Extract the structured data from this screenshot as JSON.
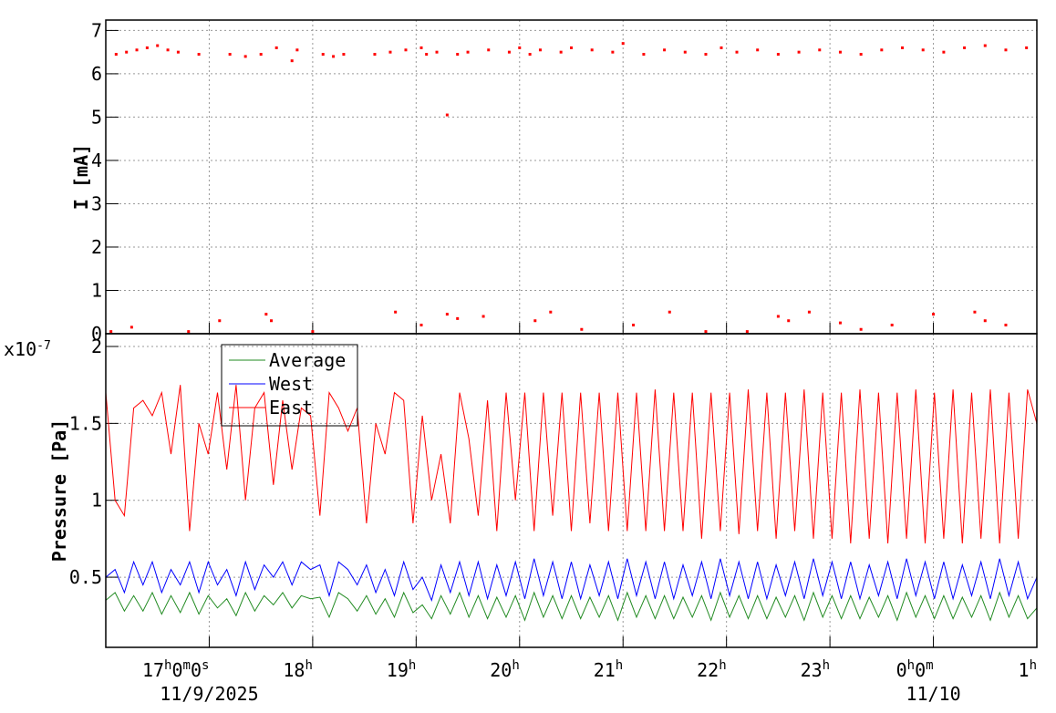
{
  "chart_data": [
    {
      "type": "scatter",
      "y_label": "I [mA]",
      "xlim": [
        16,
        25
      ],
      "xticks": [
        17,
        18,
        19,
        20,
        21,
        22,
        23,
        24,
        25
      ],
      "ylim": [
        0,
        7.24
      ],
      "yticks": [
        0,
        1,
        2,
        3,
        4,
        5,
        6,
        7
      ],
      "grid": true,
      "color": "#ff0000",
      "x": [
        16.1,
        16.2,
        16.3,
        16.4,
        16.5,
        16.6,
        16.7,
        16.9,
        17.2,
        17.35,
        17.5,
        17.65,
        17.8,
        17.85,
        18.1,
        18.2,
        18.3,
        18.6,
        18.75,
        18.9,
        19.05,
        19.1,
        19.2,
        19.4,
        19.5,
        19.7,
        19.9,
        20.0,
        20.1,
        20.2,
        20.4,
        20.5,
        20.7,
        20.9,
        21.0,
        21.2,
        21.4,
        21.6,
        21.8,
        21.95,
        22.1,
        22.3,
        22.5,
        22.7,
        22.9,
        23.1,
        23.3,
        23.5,
        23.7,
        23.9,
        24.1,
        24.3,
        24.5,
        24.7,
        24.9,
        19.3,
        16.05,
        16.25,
        16.8,
        17.1,
        17.55,
        17.6,
        18.0,
        18.8,
        19.05,
        19.3,
        19.4,
        19.65,
        20.15,
        20.3,
        20.6,
        21.1,
        21.45,
        21.8,
        22.2,
        22.5,
        22.6,
        22.8,
        23.1,
        23.3,
        23.6,
        24.0,
        24.4,
        24.5,
        24.7
      ],
      "values": [
        6.45,
        6.5,
        6.55,
        6.6,
        6.65,
        6.55,
        6.5,
        6.45,
        6.45,
        6.4,
        6.45,
        6.6,
        6.3,
        6.55,
        6.45,
        6.4,
        6.45,
        6.45,
        6.5,
        6.55,
        6.6,
        6.45,
        6.5,
        6.45,
        6.5,
        6.55,
        6.5,
        6.6,
        6.45,
        6.55,
        6.5,
        6.6,
        6.55,
        6.5,
        6.7,
        6.45,
        6.55,
        6.5,
        6.45,
        6.6,
        6.5,
        6.55,
        6.45,
        6.5,
        6.55,
        6.5,
        6.45,
        6.55,
        6.6,
        6.55,
        6.5,
        6.6,
        6.65,
        6.55,
        6.6,
        5.05,
        0.05,
        0.15,
        0.05,
        0.3,
        0.45,
        0.3,
        0.05,
        0.5,
        0.2,
        0.45,
        0.35,
        0.4,
        0.3,
        0.5,
        0.1,
        0.2,
        0.5,
        0.05,
        0.05,
        0.4,
        0.3,
        0.5,
        0.25,
        0.1,
        0.2,
        0.45,
        0.5,
        0.3,
        0.2
      ]
    },
    {
      "type": "line",
      "y_label": "Pressure [Pa]",
      "y_scale": {
        "base": "x10",
        "exponent": "-7"
      },
      "xlim": [
        16,
        25
      ],
      "xticks": [
        {
          "value": 17,
          "label": "17h0m0s"
        },
        {
          "value": 18,
          "label": "18h"
        },
        {
          "value": 19,
          "label": "19h"
        },
        {
          "value": 20,
          "label": "20h"
        },
        {
          "value": 21,
          "label": "21h"
        },
        {
          "value": 22,
          "label": "22h"
        },
        {
          "value": 23,
          "label": "23h"
        },
        {
          "value": 24,
          "label": "0h0m"
        },
        {
          "value": 25,
          "label": "1h"
        }
      ],
      "date_labels": [
        {
          "value": 17,
          "label": "11/9/2025"
        },
        {
          "value": 24,
          "label": "11/10"
        }
      ],
      "ylim": [
        0.044,
        2.083
      ],
      "yticks": [
        0.5,
        1,
        1.5,
        2
      ],
      "grid": true,
      "legend": "upper left",
      "x": [
        16,
        16.09,
        16.18,
        16.27,
        16.36,
        16.45,
        16.54,
        16.63,
        16.72,
        16.81,
        16.9,
        16.99,
        17.08,
        17.17,
        17.26,
        17.35,
        17.44,
        17.53,
        17.62,
        17.71,
        17.8,
        17.89,
        17.98,
        18.07,
        18.16,
        18.25,
        18.34,
        18.43,
        18.52,
        18.61,
        18.7,
        18.79,
        18.88,
        18.97,
        19.06,
        19.15,
        19.24,
        19.33,
        19.42,
        19.51,
        19.6,
        19.69,
        19.78,
        19.87,
        19.96,
        20.05,
        20.14,
        20.23,
        20.32,
        20.41,
        20.5,
        20.59,
        20.68,
        20.77,
        20.86,
        20.95,
        21.04,
        21.13,
        21.22,
        21.31,
        21.4,
        21.49,
        21.58,
        21.67,
        21.76,
        21.85,
        21.94,
        22.03,
        22.12,
        22.21,
        22.3,
        22.39,
        22.48,
        22.57,
        22.66,
        22.75,
        22.84,
        22.93,
        23.02,
        23.11,
        23.2,
        23.29,
        23.38,
        23.47,
        23.56,
        23.65,
        23.74,
        23.83,
        23.92,
        24.01,
        24.1,
        24.19,
        24.28,
        24.37,
        24.46,
        24.55,
        24.64,
        24.73,
        24.82,
        24.91,
        25
      ],
      "series": [
        {
          "name": "Average",
          "color": "#228b22",
          "values": [
            0.35,
            0.4,
            0.28,
            0.38,
            0.28,
            0.4,
            0.26,
            0.38,
            0.27,
            0.4,
            0.26,
            0.38,
            0.3,
            0.36,
            0.25,
            0.4,
            0.28,
            0.38,
            0.32,
            0.4,
            0.3,
            0.38,
            0.36,
            0.37,
            0.24,
            0.4,
            0.36,
            0.28,
            0.38,
            0.26,
            0.36,
            0.24,
            0.4,
            0.27,
            0.32,
            0.23,
            0.38,
            0.26,
            0.4,
            0.24,
            0.38,
            0.23,
            0.37,
            0.24,
            0.38,
            0.22,
            0.4,
            0.24,
            0.38,
            0.23,
            0.38,
            0.23,
            0.37,
            0.24,
            0.38,
            0.22,
            0.4,
            0.24,
            0.38,
            0.23,
            0.38,
            0.23,
            0.37,
            0.24,
            0.38,
            0.22,
            0.4,
            0.24,
            0.38,
            0.23,
            0.38,
            0.23,
            0.37,
            0.24,
            0.38,
            0.22,
            0.4,
            0.24,
            0.38,
            0.23,
            0.38,
            0.23,
            0.37,
            0.24,
            0.38,
            0.22,
            0.4,
            0.24,
            0.38,
            0.23,
            0.38,
            0.23,
            0.37,
            0.24,
            0.38,
            0.22,
            0.4,
            0.24,
            0.38,
            0.23,
            0.3
          ]
        },
        {
          "name": "West",
          "color": "#0000ff",
          "values": [
            0.5,
            0.55,
            0.4,
            0.6,
            0.45,
            0.6,
            0.4,
            0.55,
            0.45,
            0.6,
            0.4,
            0.6,
            0.45,
            0.55,
            0.38,
            0.6,
            0.42,
            0.58,
            0.5,
            0.6,
            0.45,
            0.6,
            0.55,
            0.58,
            0.38,
            0.6,
            0.55,
            0.45,
            0.58,
            0.4,
            0.55,
            0.38,
            0.6,
            0.42,
            0.5,
            0.35,
            0.58,
            0.4,
            0.6,
            0.38,
            0.6,
            0.36,
            0.58,
            0.38,
            0.6,
            0.36,
            0.62,
            0.38,
            0.6,
            0.36,
            0.6,
            0.36,
            0.58,
            0.38,
            0.6,
            0.36,
            0.62,
            0.38,
            0.6,
            0.36,
            0.6,
            0.36,
            0.58,
            0.38,
            0.6,
            0.36,
            0.62,
            0.38,
            0.6,
            0.36,
            0.6,
            0.36,
            0.58,
            0.38,
            0.6,
            0.36,
            0.62,
            0.38,
            0.6,
            0.36,
            0.6,
            0.36,
            0.58,
            0.38,
            0.6,
            0.36,
            0.62,
            0.38,
            0.6,
            0.36,
            0.6,
            0.36,
            0.58,
            0.38,
            0.6,
            0.36,
            0.62,
            0.38,
            0.6,
            0.36,
            0.5
          ]
        },
        {
          "name": "East",
          "color": "#ff0000",
          "values": [
            1.7,
            1.0,
            0.9,
            1.6,
            1.65,
            1.55,
            1.7,
            1.3,
            1.75,
            0.8,
            1.5,
            1.3,
            1.7,
            1.2,
            1.75,
            1.0,
            1.6,
            1.7,
            1.1,
            1.65,
            1.2,
            1.6,
            1.55,
            0.9,
            1.7,
            1.6,
            1.45,
            1.6,
            0.85,
            1.5,
            1.3,
            1.7,
            1.65,
            0.85,
            1.55,
            1.0,
            1.3,
            0.85,
            1.7,
            1.4,
            0.9,
            1.65,
            0.8,
            1.7,
            1.0,
            1.7,
            0.8,
            1.7,
            0.9,
            1.7,
            0.8,
            1.7,
            0.85,
            1.7,
            0.8,
            1.7,
            0.8,
            1.7,
            0.8,
            1.72,
            0.8,
            1.7,
            0.8,
            1.7,
            0.75,
            1.7,
            0.8,
            1.7,
            0.78,
            1.72,
            0.8,
            1.7,
            0.75,
            1.7,
            0.8,
            1.72,
            0.75,
            1.7,
            0.75,
            1.7,
            0.72,
            1.72,
            0.75,
            1.7,
            0.72,
            1.7,
            0.75,
            1.72,
            0.72,
            1.7,
            0.75,
            1.72,
            0.72,
            1.7,
            0.75,
            1.72,
            0.72,
            1.7,
            0.75,
            1.72,
            1.5
          ]
        }
      ]
    }
  ]
}
